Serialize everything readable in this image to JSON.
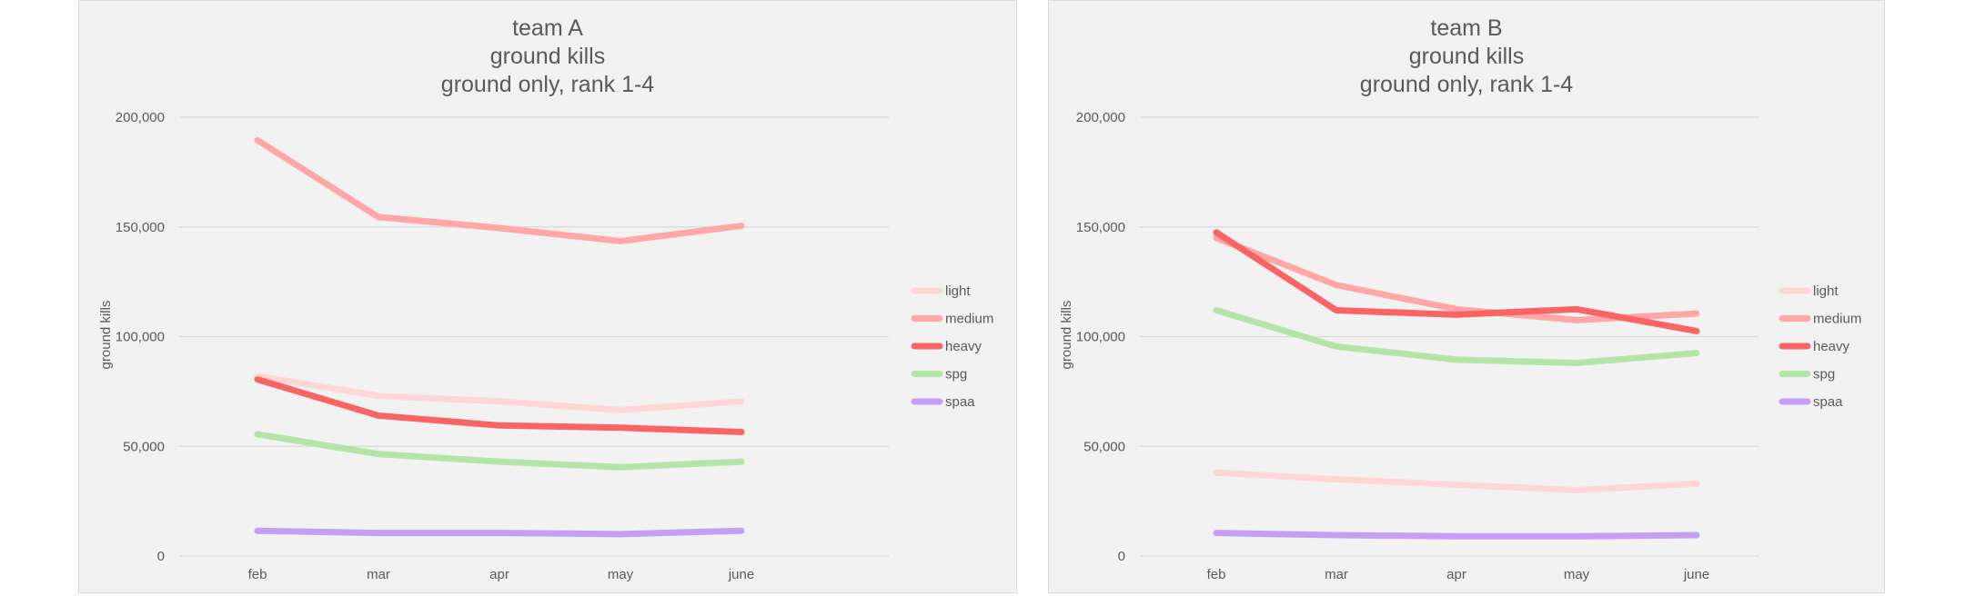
{
  "chart_data": [
    {
      "type": "line",
      "title": [
        "team A",
        "ground kills",
        "ground only, rank 1-4"
      ],
      "xlabel": "",
      "ylabel": "ground kills",
      "categories": [
        "feb",
        "mar",
        "apr",
        "may",
        "june"
      ],
      "ylim": [
        0,
        200000
      ],
      "yticks": [
        0,
        50000,
        100000,
        150000,
        200000
      ],
      "ytick_labels": [
        "0",
        "50,000",
        "100,000",
        "150,000",
        "200,000"
      ],
      "grid": true,
      "legend": "right",
      "series": [
        {
          "name": "light",
          "color": "#ffd6d6",
          "values": [
            82000,
            73000,
            70500,
            66500,
            70500
          ]
        },
        {
          "name": "medium",
          "color": "#ffa6a6",
          "values": [
            189500,
            154500,
            149500,
            143500,
            150500
          ]
        },
        {
          "name": "heavy",
          "color": "#f96464",
          "values": [
            80500,
            64000,
            59500,
            58500,
            56500
          ]
        },
        {
          "name": "spg",
          "color": "#b5e4a8",
          "values": [
            55500,
            46500,
            43000,
            40500,
            43000
          ]
        },
        {
          "name": "spaa",
          "color": "#c79ef5",
          "values": [
            11500,
            10500,
            10500,
            10000,
            11500
          ]
        }
      ]
    },
    {
      "type": "line",
      "title": [
        "team B",
        "ground kills",
        "ground only, rank 1-4"
      ],
      "xlabel": "",
      "ylabel": "ground kills",
      "categories": [
        "feb",
        "mar",
        "apr",
        "may",
        "june"
      ],
      "ylim": [
        0,
        200000
      ],
      "yticks": [
        0,
        50000,
        100000,
        150000,
        200000
      ],
      "ytick_labels": [
        "0",
        "50,000",
        "100,000",
        "150,000",
        "200,000"
      ],
      "grid": true,
      "legend": "right",
      "series": [
        {
          "name": "light",
          "color": "#ffd6d6",
          "values": [
            38000,
            35000,
            32500,
            30000,
            33000
          ]
        },
        {
          "name": "medium",
          "color": "#ffa6a6",
          "values": [
            145000,
            123500,
            112500,
            107500,
            110500
          ]
        },
        {
          "name": "heavy",
          "color": "#f96464",
          "values": [
            147500,
            112000,
            110000,
            112500,
            102500
          ]
        },
        {
          "name": "spg",
          "color": "#b5e4a8",
          "values": [
            112000,
            95500,
            89500,
            88000,
            92500
          ]
        },
        {
          "name": "spaa",
          "color": "#c79ef5",
          "values": [
            10500,
            9500,
            9000,
            9000,
            9500
          ]
        }
      ]
    }
  ]
}
